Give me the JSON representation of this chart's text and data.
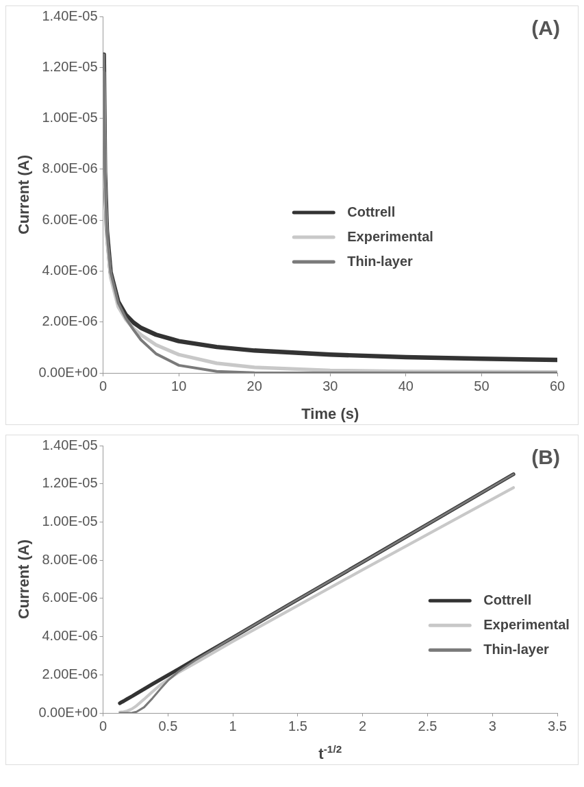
{
  "chart_data": [
    {
      "type": "line",
      "annotations": [
        "(A)"
      ],
      "xlabel": "Time (s)",
      "ylabel": "Current (A)",
      "legend": "right",
      "grid": false,
      "marker": "none",
      "line_style": "solid",
      "xlim": [
        0,
        60
      ],
      "xticks": [
        0,
        10,
        20,
        30,
        40,
        50,
        60
      ],
      "ylim": [
        0,
        1.4e-05
      ],
      "yticks": [
        {
          "value": 0,
          "label": "0.00E+00"
        },
        {
          "value": 2e-06,
          "label": "2.00E-06"
        },
        {
          "value": 4e-06,
          "label": "4.00E-06"
        },
        {
          "value": 6e-06,
          "label": "6.00E-06"
        },
        {
          "value": 8e-06,
          "label": "8.00E-06"
        },
        {
          "value": 1e-05,
          "label": "1.00E-05"
        },
        {
          "value": 1.2e-05,
          "label": "1.20E-05"
        },
        {
          "value": 1.4e-05,
          "label": "1.40E-05"
        }
      ],
      "x": [
        0.1,
        0.25,
        0.5,
        1,
        2,
        3,
        4,
        5,
        7,
        10,
        15,
        20,
        30,
        40,
        50,
        60
      ],
      "series": [
        {
          "name": "Cottrell",
          "color": "#333333",
          "values": [
            1.25e-05,
            7.9e-06,
            5.6e-06,
            3.95e-06,
            2.8e-06,
            2.28e-06,
            1.98e-06,
            1.77e-06,
            1.5e-06,
            1.25e-06,
            1.02e-06,
            8.8e-07,
            7.2e-07,
            6.2e-07,
            5.6e-07,
            5.1e-07
          ]
        },
        {
          "name": "Experimental",
          "color": "#c8c8c8",
          "values": [
            1.18e-05,
            7.5e-06,
            5.3e-06,
            3.75e-06,
            2.6e-06,
            2.1e-06,
            1.75e-06,
            1.5e-06,
            1.1e-06,
            7.2e-07,
            3.8e-07,
            2.2e-07,
            1e-07,
            6e-08,
            5e-08,
            4e-08
          ]
        },
        {
          "name": "Thin-layer",
          "color": "#7a7a7a",
          "values": [
            1.25e-05,
            7.9e-06,
            5.6e-06,
            3.95e-06,
            2.75e-06,
            2.15e-06,
            1.7e-06,
            1.3e-06,
            7.5e-07,
            3e-07,
            6e-08,
            1e-08,
            0,
            0,
            0,
            0
          ]
        }
      ]
    },
    {
      "type": "line",
      "annotations": [
        "(B)"
      ],
      "xlabel": "t$^{-1/2}$",
      "ylabel": "Current (A)",
      "legend": "bottom right",
      "grid": false,
      "marker": "none",
      "line_style": "solid",
      "xlim": [
        0,
        3.5
      ],
      "xticks": [
        0,
        0.5,
        1,
        1.5,
        2,
        2.5,
        3,
        3.5
      ],
      "ylim": [
        0,
        1.4e-05
      ],
      "yticks": [
        {
          "value": 0,
          "label": "0.00E+00"
        },
        {
          "value": 2e-06,
          "label": "2.00E-06"
        },
        {
          "value": 4e-06,
          "label": "4.00E-06"
        },
        {
          "value": 6e-06,
          "label": "6.00E-06"
        },
        {
          "value": 8e-06,
          "label": "8.00E-06"
        },
        {
          "value": 1e-05,
          "label": "1.00E-05"
        },
        {
          "value": 1.2e-05,
          "label": "1.20E-05"
        },
        {
          "value": 1.4e-05,
          "label": "1.40E-05"
        }
      ],
      "x": [
        3.162,
        2,
        1.414,
        1,
        0.707,
        0.577,
        0.5,
        0.447,
        0.378,
        0.316,
        0.258,
        0.224,
        0.183,
        0.158,
        0.141,
        0.129
      ],
      "series": [
        {
          "name": "Cottrell",
          "color": "#333333",
          "values": [
            1.25e-05,
            7.9e-06,
            5.6e-06,
            3.95e-06,
            2.8e-06,
            2.28e-06,
            1.98e-06,
            1.77e-06,
            1.5e-06,
            1.25e-06,
            1.02e-06,
            8.8e-07,
            7.2e-07,
            6.2e-07,
            5.6e-07,
            5.1e-07
          ]
        },
        {
          "name": "Experimental",
          "color": "#c8c8c8",
          "values": [
            1.18e-05,
            7.5e-06,
            5.3e-06,
            3.75e-06,
            2.6e-06,
            2.1e-06,
            1.75e-06,
            1.5e-06,
            1.1e-06,
            7.2e-07,
            3.8e-07,
            2.2e-07,
            1e-07,
            6e-08,
            5e-08,
            4e-08
          ]
        },
        {
          "name": "Thin-layer",
          "color": "#7a7a7a",
          "values": [
            1.25e-05,
            7.9e-06,
            5.6e-06,
            3.95e-06,
            2.75e-06,
            2.15e-06,
            1.7e-06,
            1.3e-06,
            7.5e-07,
            3e-07,
            6e-08,
            1e-08,
            0,
            0,
            0,
            0
          ]
        }
      ]
    }
  ]
}
